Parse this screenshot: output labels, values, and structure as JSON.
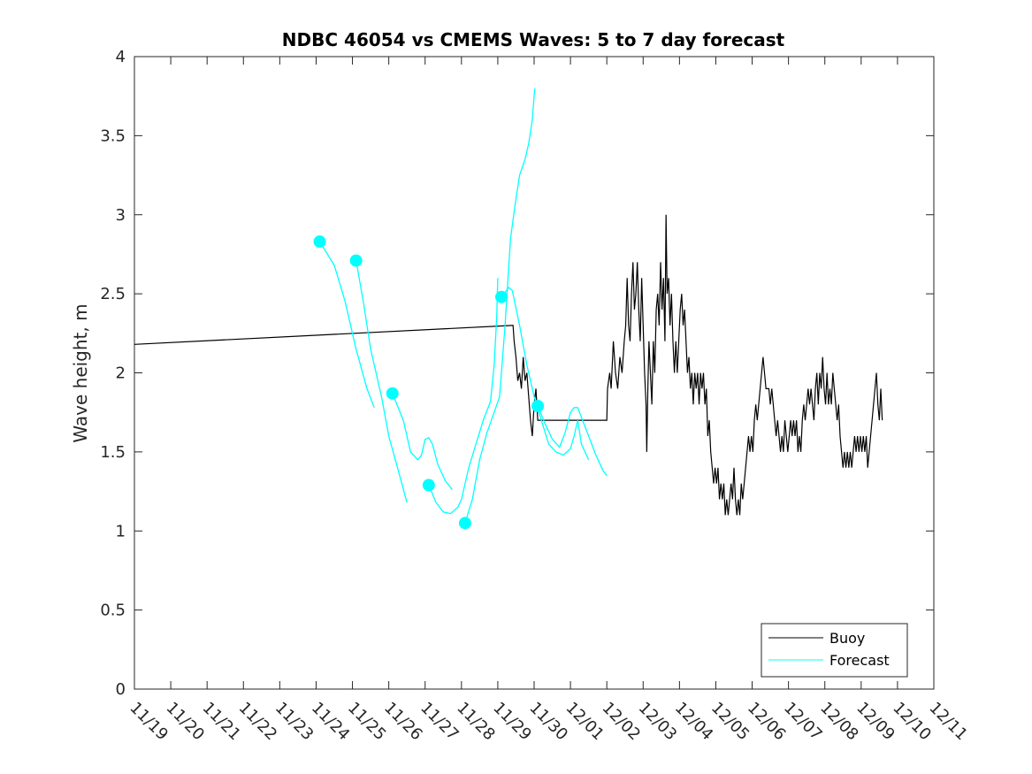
{
  "chart_data": {
    "type": "line",
    "title": "NDBC 46054 vs CMEMS Waves: 5 to 7 day forecast",
    "xlabel": "",
    "ylabel": "Wave height, m",
    "xlim": [
      0,
      22
    ],
    "ylim": [
      0,
      4
    ],
    "x_tick_values": [
      0,
      1,
      2,
      3,
      4,
      5,
      6,
      7,
      8,
      9,
      10,
      11,
      12,
      13,
      14,
      15,
      16,
      17,
      18,
      19,
      20,
      21,
      22
    ],
    "x_tick_labels": [
      "11/19",
      "11/20",
      "11/21",
      "11/22",
      "11/23",
      "11/24",
      "11/25",
      "11/26",
      "11/27",
      "11/28",
      "11/29",
      "11/30",
      "12/01",
      "12/02",
      "12/03",
      "12/04",
      "12/05",
      "12/06",
      "12/07",
      "12/08",
      "12/09",
      "12/10",
      "12/11"
    ],
    "y_tick_values": [
      0,
      0.5,
      1,
      1.5,
      2,
      2.5,
      3,
      3.5,
      4
    ],
    "y_tick_labels": [
      "0",
      "0.5",
      "1",
      "1.5",
      "2",
      "2.5",
      "3",
      "3.5",
      "4"
    ],
    "x_units": "days since 11/19",
    "legend": {
      "position": "bottom-right",
      "entries": [
        "Buoy",
        "Forecast"
      ]
    },
    "series": [
      {
        "name": "Buoy",
        "color": "#000000",
        "points": [
          [
            0,
            2.18
          ],
          [
            10.4,
            2.3
          ],
          [
            10.42,
            2.3
          ],
          [
            10.45,
            2.2
          ],
          [
            10.5,
            2.1
          ],
          [
            10.55,
            1.95
          ],
          [
            10.6,
            2.0
          ],
          [
            10.65,
            1.9
          ],
          [
            10.7,
            2.1
          ],
          [
            10.75,
            1.95
          ],
          [
            10.8,
            2.0
          ],
          [
            10.85,
            1.85
          ],
          [
            10.9,
            1.7
          ],
          [
            10.95,
            1.6
          ],
          [
            11.0,
            1.8
          ],
          [
            11.05,
            1.9
          ],
          [
            11.1,
            1.7
          ],
          [
            13.0,
            1.7
          ],
          [
            13.02,
            1.9
          ],
          [
            13.08,
            2.0
          ],
          [
            13.12,
            1.9
          ],
          [
            13.18,
            2.2
          ],
          [
            13.24,
            2.0
          ],
          [
            13.3,
            1.9
          ],
          [
            13.36,
            2.1
          ],
          [
            13.42,
            2.0
          ],
          [
            13.48,
            2.2
          ],
          [
            13.52,
            2.3
          ],
          [
            13.56,
            2.6
          ],
          [
            13.6,
            2.3
          ],
          [
            13.64,
            2.2
          ],
          [
            13.68,
            2.5
          ],
          [
            13.72,
            2.7
          ],
          [
            13.76,
            2.4
          ],
          [
            13.8,
            2.5
          ],
          [
            13.84,
            2.7
          ],
          [
            13.88,
            2.4
          ],
          [
            13.92,
            2.2
          ],
          [
            13.96,
            2.6
          ],
          [
            14.0,
            2.3
          ],
          [
            14.04,
            2.0
          ],
          [
            14.08,
            1.8
          ],
          [
            14.1,
            1.5
          ],
          [
            14.13,
            1.9
          ],
          [
            14.16,
            2.2
          ],
          [
            14.2,
            2.0
          ],
          [
            14.24,
            1.8
          ],
          [
            14.28,
            2.2
          ],
          [
            14.32,
            2.0
          ],
          [
            14.36,
            2.4
          ],
          [
            14.4,
            2.5
          ],
          [
            14.44,
            2.3
          ],
          [
            14.48,
            2.7
          ],
          [
            14.52,
            2.4
          ],
          [
            14.56,
            2.6
          ],
          [
            14.6,
            2.2
          ],
          [
            14.63,
            3.0
          ],
          [
            14.66,
            2.5
          ],
          [
            14.7,
            2.6
          ],
          [
            14.74,
            2.3
          ],
          [
            14.78,
            2.5
          ],
          [
            14.82,
            2.2
          ],
          [
            14.86,
            2.0
          ],
          [
            14.9,
            2.2
          ],
          [
            14.94,
            2.0
          ],
          [
            14.98,
            2.2
          ],
          [
            15.02,
            2.4
          ],
          [
            15.06,
            2.5
          ],
          [
            15.1,
            2.3
          ],
          [
            15.14,
            2.4
          ],
          [
            15.18,
            2.2
          ],
          [
            15.22,
            2.0
          ],
          [
            15.26,
            2.1
          ],
          [
            15.3,
            1.9
          ],
          [
            15.34,
            2.0
          ],
          [
            15.38,
            1.8
          ],
          [
            15.42,
            2.0
          ],
          [
            15.46,
            1.9
          ],
          [
            15.5,
            2.0
          ],
          [
            15.54,
            1.8
          ],
          [
            15.58,
            2.0
          ],
          [
            15.62,
            1.9
          ],
          [
            15.66,
            2.0
          ],
          [
            15.7,
            1.8
          ],
          [
            15.74,
            1.9
          ],
          [
            15.78,
            1.6
          ],
          [
            15.82,
            1.7
          ],
          [
            15.86,
            1.5
          ],
          [
            15.9,
            1.4
          ],
          [
            15.94,
            1.3
          ],
          [
            15.98,
            1.4
          ],
          [
            16.02,
            1.3
          ],
          [
            16.06,
            1.4
          ],
          [
            16.1,
            1.2
          ],
          [
            16.14,
            1.3
          ],
          [
            16.18,
            1.2
          ],
          [
            16.22,
            1.3
          ],
          [
            16.26,
            1.1
          ],
          [
            16.3,
            1.2
          ],
          [
            16.34,
            1.1
          ],
          [
            16.38,
            1.2
          ],
          [
            16.42,
            1.3
          ],
          [
            16.46,
            1.2
          ],
          [
            16.5,
            1.4
          ],
          [
            16.54,
            1.2
          ],
          [
            16.58,
            1.1
          ],
          [
            16.62,
            1.2
          ],
          [
            16.66,
            1.1
          ],
          [
            16.7,
            1.3
          ],
          [
            16.74,
            1.2
          ],
          [
            16.78,
            1.3
          ],
          [
            16.82,
            1.4
          ],
          [
            16.86,
            1.5
          ],
          [
            16.9,
            1.6
          ],
          [
            16.94,
            1.5
          ],
          [
            16.98,
            1.6
          ],
          [
            17.02,
            1.5
          ],
          [
            17.06,
            1.7
          ],
          [
            17.1,
            1.8
          ],
          [
            17.14,
            1.7
          ],
          [
            17.18,
            1.8
          ],
          [
            17.22,
            1.9
          ],
          [
            17.26,
            2.0
          ],
          [
            17.3,
            2.1
          ],
          [
            17.34,
            2.0
          ],
          [
            17.38,
            1.9
          ],
          [
            17.42,
            1.9
          ],
          [
            17.46,
            1.9
          ],
          [
            17.5,
            1.8
          ],
          [
            17.54,
            1.9
          ],
          [
            17.58,
            1.8
          ],
          [
            17.62,
            1.7
          ],
          [
            17.66,
            1.6
          ],
          [
            17.7,
            1.7
          ],
          [
            17.74,
            1.6
          ],
          [
            17.78,
            1.5
          ],
          [
            17.82,
            1.6
          ],
          [
            17.86,
            1.5
          ],
          [
            17.9,
            1.7
          ],
          [
            17.94,
            1.6
          ],
          [
            17.98,
            1.5
          ],
          [
            18.02,
            1.6
          ],
          [
            18.06,
            1.7
          ],
          [
            18.1,
            1.6
          ],
          [
            18.14,
            1.7
          ],
          [
            18.18,
            1.6
          ],
          [
            18.22,
            1.7
          ],
          [
            18.26,
            1.5
          ],
          [
            18.3,
            1.6
          ],
          [
            18.34,
            1.5
          ],
          [
            18.38,
            1.7
          ],
          [
            18.42,
            1.8
          ],
          [
            18.46,
            1.7
          ],
          [
            18.5,
            1.8
          ],
          [
            18.54,
            1.9
          ],
          [
            18.58,
            1.8
          ],
          [
            18.62,
            1.9
          ],
          [
            18.66,
            1.8
          ],
          [
            18.7,
            1.7
          ],
          [
            18.74,
            1.9
          ],
          [
            18.78,
            2.0
          ],
          [
            18.82,
            1.8
          ],
          [
            18.86,
            2.0
          ],
          [
            18.9,
            1.9
          ],
          [
            18.94,
            2.1
          ],
          [
            18.98,
            1.9
          ],
          [
            19.02,
            1.8
          ],
          [
            19.06,
            2.0
          ],
          [
            19.1,
            1.8
          ],
          [
            19.14,
            1.9
          ],
          [
            19.18,
            1.8
          ],
          [
            19.22,
            2.0
          ],
          [
            19.26,
            1.9
          ],
          [
            19.3,
            1.8
          ],
          [
            19.34,
            1.7
          ],
          [
            19.38,
            1.8
          ],
          [
            19.42,
            1.6
          ],
          [
            19.46,
            1.5
          ],
          [
            19.5,
            1.4
          ],
          [
            19.54,
            1.5
          ],
          [
            19.58,
            1.4
          ],
          [
            19.62,
            1.5
          ],
          [
            19.66,
            1.4
          ],
          [
            19.7,
            1.5
          ],
          [
            19.74,
            1.4
          ],
          [
            19.78,
            1.5
          ],
          [
            19.82,
            1.6
          ],
          [
            19.86,
            1.5
          ],
          [
            19.9,
            1.6
          ],
          [
            19.94,
            1.5
          ],
          [
            19.98,
            1.6
          ],
          [
            20.02,
            1.5
          ],
          [
            20.06,
            1.6
          ],
          [
            20.1,
            1.5
          ],
          [
            20.14,
            1.6
          ],
          [
            20.18,
            1.4
          ],
          [
            20.22,
            1.5
          ],
          [
            20.26,
            1.6
          ],
          [
            20.3,
            1.7
          ],
          [
            20.34,
            1.8
          ],
          [
            20.38,
            1.9
          ],
          [
            20.42,
            2.0
          ],
          [
            20.46,
            1.8
          ],
          [
            20.5,
            1.7
          ],
          [
            20.54,
            1.9
          ],
          [
            20.58,
            1.7
          ]
        ]
      },
      {
        "name": "Forecast",
        "color": "#00ffff",
        "segments": [
          [
            [
              5.1,
              2.83
            ],
            [
              5.5,
              2.68
            ],
            [
              5.8,
              2.45
            ],
            [
              6.1,
              2.15
            ],
            [
              6.4,
              1.9
            ],
            [
              6.6,
              1.78
            ]
          ],
          [
            [
              6.1,
              2.71
            ],
            [
              6.3,
              2.45
            ],
            [
              6.5,
              2.15
            ],
            [
              6.8,
              1.85
            ],
            [
              7.0,
              1.6
            ],
            [
              7.3,
              1.35
            ],
            [
              7.5,
              1.18
            ]
          ],
          [
            [
              7.1,
              1.87
            ],
            [
              7.4,
              1.7
            ],
            [
              7.6,
              1.5
            ],
            [
              7.8,
              1.45
            ],
            [
              7.9,
              1.48
            ],
            [
              8.0,
              1.58
            ],
            [
              8.1,
              1.59
            ],
            [
              8.2,
              1.55
            ],
            [
              8.35,
              1.42
            ],
            [
              8.55,
              1.32
            ],
            [
              8.75,
              1.26
            ]
          ],
          [
            [
              8.1,
              1.29
            ],
            [
              8.3,
              1.18
            ],
            [
              8.5,
              1.12
            ],
            [
              8.7,
              1.11
            ],
            [
              8.9,
              1.15
            ],
            [
              9.0,
              1.2
            ],
            [
              9.1,
              1.3
            ],
            [
              9.2,
              1.4
            ],
            [
              9.4,
              1.55
            ],
            [
              9.6,
              1.7
            ],
            [
              9.8,
              1.82
            ],
            [
              9.9,
              2.05
            ],
            [
              9.97,
              2.35
            ],
            [
              10.0,
              2.6
            ]
          ],
          [
            [
              9.1,
              1.05
            ],
            [
              9.3,
              1.2
            ],
            [
              9.5,
              1.45
            ],
            [
              9.7,
              1.62
            ],
            [
              9.9,
              1.75
            ],
            [
              10.05,
              1.85
            ],
            [
              10.2,
              2.3
            ],
            [
              10.35,
              2.85
            ],
            [
              10.5,
              3.1
            ],
            [
              10.6,
              3.25
            ],
            [
              10.75,
              3.35
            ],
            [
              10.85,
              3.45
            ],
            [
              10.95,
              3.6
            ],
            [
              11.0,
              3.75
            ],
            [
              11.02,
              3.8
            ]
          ],
          [
            [
              10.1,
              2.48
            ],
            [
              10.3,
              2.54
            ],
            [
              10.4,
              2.52
            ],
            [
              10.6,
              2.3
            ],
            [
              10.8,
              2.05
            ],
            [
              11.0,
              1.85
            ],
            [
              11.2,
              1.7
            ],
            [
              11.4,
              1.55
            ],
            [
              11.6,
              1.5
            ],
            [
              11.8,
              1.48
            ],
            [
              12.0,
              1.52
            ],
            [
              12.1,
              1.6
            ],
            [
              12.2,
              1.7
            ],
            [
              12.3,
              1.55
            ],
            [
              12.5,
              1.45
            ]
          ],
          [
            [
              11.1,
              1.79
            ],
            [
              11.3,
              1.68
            ],
            [
              11.5,
              1.58
            ],
            [
              11.7,
              1.53
            ],
            [
              11.85,
              1.62
            ],
            [
              12.0,
              1.75
            ],
            [
              12.1,
              1.78
            ],
            [
              12.2,
              1.78
            ],
            [
              12.3,
              1.72
            ],
            [
              12.5,
              1.6
            ],
            [
              12.7,
              1.48
            ],
            [
              12.9,
              1.38
            ],
            [
              13.0,
              1.35
            ]
          ]
        ],
        "markers": [
          [
            5.1,
            2.83
          ],
          [
            6.1,
            2.71
          ],
          [
            7.1,
            1.87
          ],
          [
            8.1,
            1.29
          ],
          [
            9.1,
            1.05
          ],
          [
            10.1,
            2.48
          ],
          [
            11.1,
            1.79
          ]
        ]
      }
    ]
  }
}
